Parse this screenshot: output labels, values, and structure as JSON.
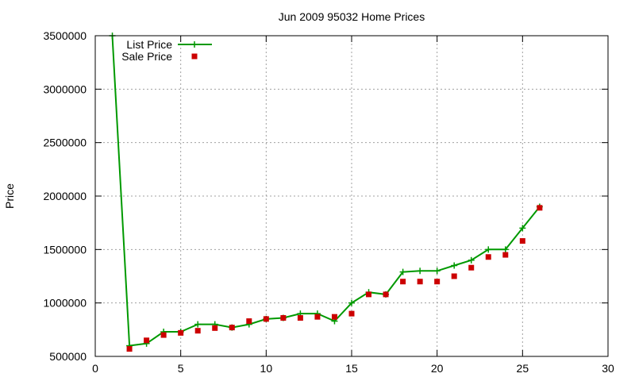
{
  "chart_data": {
    "type": "line",
    "title": "Jun 2009 95032 Home Prices",
    "xlabel": "",
    "ylabel": "Price",
    "xlim": [
      0,
      30
    ],
    "ylim": [
      500000,
      3500000
    ],
    "x_ticks": [
      "0",
      "5",
      "10",
      "15",
      "20",
      "25",
      "30"
    ],
    "y_ticks": [
      "500000",
      "1000000",
      "1500000",
      "2000000",
      "2500000",
      "3000000",
      "3500000"
    ],
    "grid": true,
    "legend_position": "top-left",
    "series": [
      {
        "name": "List Price",
        "style": "line-points",
        "marker": "plus",
        "color": "#009900",
        "x": [
          1,
          2,
          3,
          4,
          5,
          6,
          7,
          8,
          9,
          10,
          11,
          12,
          13,
          14,
          15,
          16,
          17,
          18,
          19,
          20,
          21,
          22,
          23,
          24,
          25,
          26
        ],
        "values": [
          3500000,
          600000,
          620000,
          730000,
          730000,
          800000,
          800000,
          770000,
          800000,
          850000,
          860000,
          900000,
          900000,
          830000,
          1000000,
          1100000,
          1080000,
          1290000,
          1300000,
          1300000,
          1350000,
          1400000,
          1500000,
          1500000,
          1700000,
          1900000
        ]
      },
      {
        "name": "Sale Price",
        "style": "points",
        "marker": "square",
        "color": "#cc0000",
        "x": [
          2,
          3,
          4,
          5,
          6,
          7,
          8,
          9,
          10,
          11,
          12,
          13,
          14,
          15,
          16,
          17,
          18,
          19,
          20,
          21,
          22,
          23,
          24,
          25,
          26
        ],
        "values": [
          570000,
          650000,
          700000,
          720000,
          740000,
          765000,
          770000,
          830000,
          850000,
          860000,
          860000,
          870000,
          870000,
          900000,
          1080000,
          1080000,
          1200000,
          1200000,
          1200000,
          1250000,
          1330000,
          1430000,
          1450000,
          1580000,
          1890000
        ]
      }
    ]
  }
}
